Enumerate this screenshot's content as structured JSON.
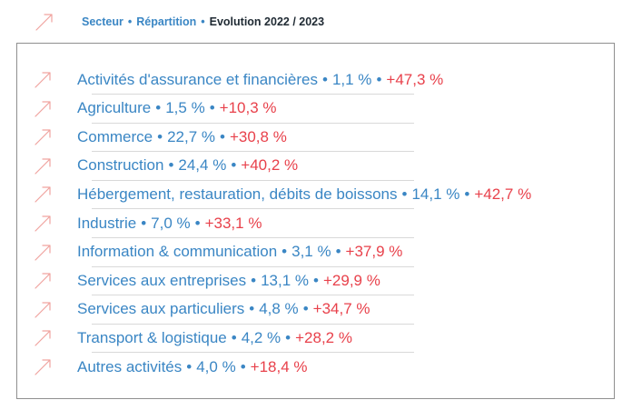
{
  "header": {
    "col1": "Secteur",
    "col2": "Répartition",
    "col3": "Evolution 2022 / 2023",
    "separator": "•"
  },
  "colors": {
    "blue": "#3a86c4",
    "red": "#e8414b",
    "dark": "#1f2a33",
    "arrow": "#f0a39f"
  },
  "icon": "arrow-up-right-icon",
  "rows": [
    {
      "sector": "Activités d'assurance et financières",
      "share": "1,1 %",
      "evolution": "+47,3 %"
    },
    {
      "sector": "Agriculture",
      "share": "1,5 %",
      "evolution": "+10,3 %"
    },
    {
      "sector": "Commerce",
      "share": "22,7 %",
      "evolution": "+30,8 %"
    },
    {
      "sector": "Construction",
      "share": "24,4 %",
      "evolution": "+40,2 %"
    },
    {
      "sector": "Hébergement, restauration, débits de boissons",
      "share": "14,1 %",
      "evolution": "+42,7 %"
    },
    {
      "sector": "Industrie",
      "share": "7,0 %",
      "evolution": "+33,1 %"
    },
    {
      "sector": "Information & communication",
      "share": "3,1 %",
      "evolution": "+37,9 %"
    },
    {
      "sector": "Services aux entreprises",
      "share": "13,1 %",
      "evolution": "+29,9 %"
    },
    {
      "sector": "Services aux particuliers",
      "share": "4,8 %",
      "evolution": "+34,7 %"
    },
    {
      "sector": "Transport & logistique",
      "share": "4,2 %",
      "evolution": "+28,2 %"
    },
    {
      "sector": "Autres activités",
      "share": "4,0 %",
      "evolution": "+18,4 %"
    }
  ]
}
